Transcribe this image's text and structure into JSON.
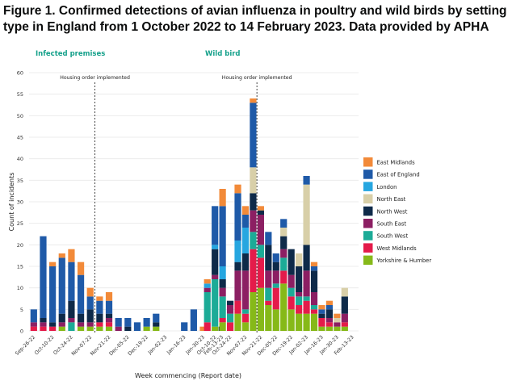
{
  "figure": {
    "title_line1": "Figure 1. Confirmed detections of avian influenza in poultry and wild birds by setting",
    "title_line2": "type in England from 1 October 2022 to 14 February 2023. Data provided by APHA"
  },
  "colors": {
    "East Midlands": "#f28a39",
    "East of England": "#1f5aa8",
    "London": "#26a6e0",
    "North East": "#d8cfa8",
    "North West": "#0e2a49",
    "South East": "#8c1f63",
    "South West": "#1cab97",
    "West Midlands": "#e41b4a",
    "Yorkshire & Humber": "#86b919",
    "panel_title": "#16a18b",
    "grid": "#ececec",
    "axis_text": "#333333"
  },
  "chart_data": {
    "type": "bar",
    "stacked": true,
    "ylabel": "Count of incidents",
    "xlabel": "Week commencing (Report date)",
    "ylim": [
      0,
      60
    ],
    "yticks": [
      0,
      5,
      10,
      15,
      20,
      25,
      30,
      35,
      40,
      45,
      50,
      55,
      60
    ],
    "grid": true,
    "legend_position": "right",
    "regions": [
      "East Midlands",
      "East of England",
      "London",
      "North East",
      "North West",
      "South East",
      "South West",
      "West Midlands",
      "Yorkshire & Humber"
    ],
    "stack_order_bottom_to_top": [
      "Yorkshire & Humber",
      "West Midlands",
      "South West",
      "South East",
      "North West",
      "North East",
      "London",
      "East of England",
      "East Midlands"
    ],
    "panels": [
      {
        "title": "Infected premises",
        "annotation": "Housing order implemented",
        "annotation_after_week": 6,
        "xtick_labels": [
          "Sep-26-22",
          "Oct-10-22",
          "Oct-24-22",
          "Nov-07-22",
          "Nov-21-22",
          "Dec-05-22",
          "Dec-19-22",
          "Jan-02-23",
          "Jan-16-23",
          "Jan-30-23",
          "Feb-13-23"
        ],
        "xtick_weeks": [
          0,
          2,
          4,
          6,
          8,
          10,
          12,
          14,
          16,
          18,
          20
        ],
        "n_weeks": 21,
        "bars": [
          {
            "week": 0,
            "Yorkshire & Humber": 0,
            "West Midlands": 1,
            "South West": 0,
            "South East": 1,
            "North West": 0,
            "North East": 0,
            "London": 0,
            "East of England": 3,
            "East Midlands": 0
          },
          {
            "week": 1,
            "Yorkshire & Humber": 0,
            "West Midlands": 1,
            "South West": 0,
            "South East": 1,
            "North West": 1,
            "North East": 0,
            "London": 0,
            "East of England": 19,
            "East Midlands": 0
          },
          {
            "week": 2,
            "Yorkshire & Humber": 0,
            "West Midlands": 1,
            "South West": 0,
            "South East": 0,
            "North West": 1,
            "North East": 0,
            "London": 0,
            "East of England": 13,
            "East Midlands": 1
          },
          {
            "week": 3,
            "Yorkshire & Humber": 1,
            "West Midlands": 0,
            "South West": 0,
            "South East": 1,
            "North West": 2,
            "North East": 0,
            "London": 0,
            "East of England": 13,
            "East Midlands": 1
          },
          {
            "week": 4,
            "Yorkshire & Humber": 0,
            "West Midlands": 0,
            "South West": 2,
            "South East": 1,
            "North West": 4,
            "North East": 0,
            "London": 0,
            "East of England": 9,
            "East Midlands": 3
          },
          {
            "week": 5,
            "Yorkshire & Humber": 1,
            "West Midlands": 0,
            "South West": 0,
            "South East": 1,
            "North West": 2,
            "North East": 0,
            "London": 0,
            "East of England": 9,
            "East Midlands": 3
          },
          {
            "week": 6,
            "Yorkshire & Humber": 1,
            "West Midlands": 0,
            "South West": 0,
            "South East": 1,
            "North West": 3,
            "North East": 0,
            "London": 0,
            "East of England": 3,
            "East Midlands": 2
          },
          {
            "week": 7,
            "Yorkshire & Humber": 1,
            "West Midlands": 1,
            "South West": 0,
            "South East": 0,
            "North West": 2,
            "North East": 0,
            "London": 0,
            "East of England": 3,
            "East Midlands": 1
          },
          {
            "week": 8,
            "Yorkshire & Humber": 1,
            "West Midlands": 1,
            "South West": 0,
            "South East": 1,
            "North West": 1,
            "North East": 0,
            "London": 0,
            "East of England": 3,
            "East Midlands": 2
          },
          {
            "week": 9,
            "Yorkshire & Humber": 0,
            "West Midlands": 0,
            "South West": 0,
            "South East": 1,
            "North West": 0,
            "North East": 0,
            "London": 0,
            "East of England": 2,
            "East Midlands": 0
          },
          {
            "week": 10,
            "Yorkshire & Humber": 0,
            "West Midlands": 0,
            "South West": 0,
            "South East": 0,
            "North West": 1,
            "North East": 0,
            "London": 0,
            "East of England": 2,
            "East Midlands": 0
          },
          {
            "week": 11,
            "Yorkshire & Humber": 0,
            "West Midlands": 0,
            "South West": 0,
            "South East": 0,
            "North West": 0,
            "North East": 0,
            "London": 0,
            "East of England": 2,
            "East Midlands": 0
          },
          {
            "week": 12,
            "Yorkshire & Humber": 1,
            "West Midlands": 0,
            "South West": 0,
            "South East": 0,
            "North West": 0,
            "North East": 0,
            "London": 0,
            "East of England": 2,
            "East Midlands": 0
          },
          {
            "week": 13,
            "Yorkshire & Humber": 1,
            "West Midlands": 0,
            "South West": 0,
            "South East": 0,
            "North West": 1,
            "North East": 0,
            "London": 0,
            "East of England": 2,
            "East Midlands": 0
          },
          {
            "week": 16,
            "Yorkshire & Humber": 0,
            "West Midlands": 0,
            "South West": 0,
            "South East": 0,
            "North West": 0,
            "North East": 0,
            "London": 0,
            "East of England": 2,
            "East Midlands": 0
          },
          {
            "week": 17,
            "Yorkshire & Humber": 0,
            "West Midlands": 0,
            "South West": 0,
            "South East": 0,
            "North West": 0,
            "North East": 0,
            "London": 0,
            "East of England": 5,
            "East Midlands": 0
          },
          {
            "week": 18,
            "Yorkshire & Humber": 0,
            "West Midlands": 0,
            "South West": 0,
            "South East": 0,
            "North West": 0,
            "North East": 0,
            "London": 0,
            "East of England": 0,
            "East Midlands": 1
          },
          {
            "week": 20,
            "Yorkshire & Humber": 0,
            "West Midlands": 0,
            "South West": 0,
            "South East": 0,
            "North West": 1,
            "North East": 0,
            "London": 0,
            "East of England": 0,
            "East Midlands": 0
          }
        ]
      },
      {
        "title": "Wild bird",
        "annotation": "Housing order implemented",
        "annotation_after_week": 6,
        "xtick_labels": [
          "Oct-10-22",
          "Oct-24-22",
          "Nov-07-22",
          "Nov-21-22",
          "Dec-05-22",
          "Dec-19-22",
          "Jan-02-23",
          "Jan-16-23",
          "Jan-30-23",
          "Feb-13-23"
        ],
        "xtick_weeks": [
          1,
          3,
          5,
          7,
          9,
          11,
          13,
          15,
          17,
          19
        ],
        "n_weeks": 20,
        "bars": [
          {
            "week": 0,
            "Yorkshire & Humber": 0,
            "West Midlands": 2,
            "South West": 7,
            "South East": 1,
            "North West": 0,
            "North East": 0,
            "London": 1,
            "East of England": 0,
            "East Midlands": 1
          },
          {
            "week": 1,
            "Yorkshire & Humber": 1,
            "West Midlands": 0,
            "South West": 11,
            "South East": 1,
            "North West": 6,
            "North East": 0,
            "London": 1,
            "East of England": 9,
            "East Midlands": 0
          },
          {
            "week": 2,
            "Yorkshire & Humber": 2,
            "West Midlands": 1,
            "South West": 5,
            "South East": 2,
            "North West": 2,
            "North East": 0,
            "London": 3,
            "East of England": 14,
            "East Midlands": 4
          },
          {
            "week": 3,
            "Yorkshire & Humber": 0,
            "West Midlands": 2,
            "South West": 2,
            "South East": 2,
            "North West": 1,
            "North East": 0,
            "London": 0,
            "East of England": 0,
            "East Midlands": 0
          },
          {
            "week": 4,
            "Yorkshire & Humber": 4,
            "West Midlands": 3,
            "South West": 0,
            "South East": 7,
            "North West": 2,
            "North East": 0,
            "London": 5,
            "East of England": 11,
            "East Midlands": 2
          },
          {
            "week": 5,
            "Yorkshire & Humber": 2,
            "West Midlands": 2,
            "South West": 1,
            "South East": 9,
            "North West": 4,
            "North East": 0,
            "London": 6,
            "East of England": 3,
            "East Midlands": 2
          },
          {
            "week": 6,
            "Yorkshire & Humber": 9,
            "West Midlands": 10,
            "South West": 4,
            "South East": 5,
            "North West": 4,
            "North East": 6,
            "London": 0,
            "East of England": 15,
            "East Midlands": 1
          },
          {
            "week": 7,
            "Yorkshire & Humber": 10,
            "West Midlands": 7,
            "South West": 3,
            "South East": 7,
            "North West": 1,
            "North East": 0,
            "London": 0,
            "East of England": 0,
            "East Midlands": 1
          },
          {
            "week": 8,
            "Yorkshire & Humber": 6,
            "West Midlands": 1,
            "South West": 3,
            "South East": 4,
            "North West": 6,
            "North East": 0,
            "London": 0,
            "East of England": 3,
            "East Midlands": 0
          },
          {
            "week": 9,
            "Yorkshire & Humber": 5,
            "West Midlands": 5,
            "South West": 1,
            "South East": 3,
            "North West": 2,
            "North East": 0,
            "London": 0,
            "East of England": 2,
            "East Midlands": 0
          },
          {
            "week": 10,
            "Yorkshire & Humber": 11,
            "West Midlands": 3,
            "South West": 3,
            "South East": 2,
            "North West": 3,
            "North East": 2,
            "London": 0,
            "East of England": 2,
            "East Midlands": 0
          },
          {
            "week": 11,
            "Yorkshire & Humber": 5,
            "West Midlands": 3,
            "South West": 2,
            "South East": 3,
            "North West": 6,
            "North East": 0,
            "London": 0,
            "East of England": 0,
            "East Midlands": 0
          },
          {
            "week": 12,
            "Yorkshire & Humber": 4,
            "West Midlands": 2,
            "South West": 2,
            "South East": 1,
            "North West": 6,
            "North East": 3,
            "London": 0,
            "East of England": 0,
            "East Midlands": 0
          },
          {
            "week": 13,
            "Yorkshire & Humber": 4,
            "West Midlands": 3,
            "South West": 1,
            "South East": 6,
            "North West": 6,
            "North East": 14,
            "London": 0,
            "East of England": 2,
            "East Midlands": 0
          },
          {
            "week": 14,
            "Yorkshire & Humber": 4,
            "West Midlands": 1,
            "South West": 1,
            "South East": 3,
            "North West": 5,
            "North East": 0,
            "London": 0,
            "East of England": 1,
            "East Midlands": 1
          },
          {
            "week": 15,
            "Yorkshire & Humber": 1,
            "West Midlands": 2,
            "South West": 0,
            "South East": 0,
            "North West": 1,
            "North East": 0,
            "London": 0,
            "East of England": 1,
            "East Midlands": 1
          },
          {
            "week": 16,
            "Yorkshire & Humber": 1,
            "West Midlands": 1,
            "South West": 0,
            "South East": 1,
            "North West": 2,
            "North East": 0,
            "London": 0,
            "East of England": 1,
            "East Midlands": 1
          },
          {
            "week": 17,
            "Yorkshire & Humber": 1,
            "West Midlands": 0,
            "South West": 0,
            "South East": 1,
            "North West": 0,
            "North East": 1,
            "London": 0,
            "East of England": 0,
            "East Midlands": 1
          },
          {
            "week": 18,
            "Yorkshire & Humber": 1,
            "West Midlands": 1,
            "South West": 0,
            "South East": 2,
            "North West": 4,
            "North East": 2,
            "London": 0,
            "East of England": 0,
            "East Midlands": 0
          },
          {
            "week": 19,
            "Yorkshire & Humber": 0,
            "West Midlands": 0,
            "South West": 0,
            "South East": 0,
            "North West": 0,
            "North East": 0,
            "London": 0,
            "East of England": 0,
            "East Midlands": 0
          }
        ]
      }
    ]
  }
}
